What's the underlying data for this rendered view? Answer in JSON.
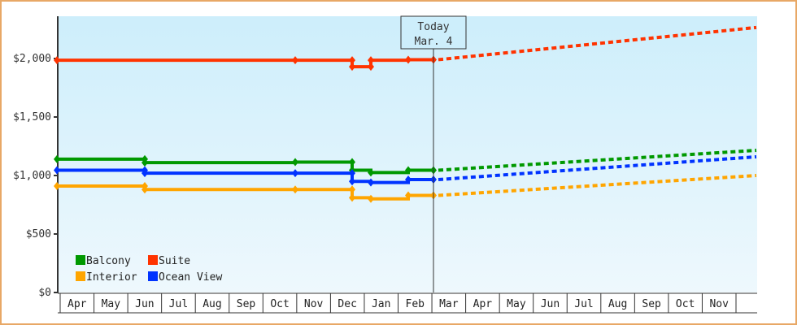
{
  "chart_data": {
    "type": "line",
    "title": "",
    "xlabel": "",
    "ylabel": "",
    "ylim": [
      0,
      2300
    ],
    "grid": false,
    "legend_position": "bottom-left inside plot",
    "y_ticks": [
      "$0",
      "$500",
      "$1,000",
      "$1,500",
      "$2,000"
    ],
    "y_tick_values": [
      0,
      500,
      1000,
      1500,
      2000
    ],
    "x_months": [
      "Apr",
      "May",
      "Jun",
      "Jul",
      "Aug",
      "Sep",
      "Oct",
      "Nov",
      "Dec",
      "Jan",
      "Feb",
      "Mar",
      "Apr",
      "May",
      "Jun",
      "Jul",
      "Aug",
      "Sep",
      "Oct",
      "Nov"
    ],
    "today_marker": {
      "line1": "Today",
      "line2": "Mar. 4"
    },
    "legend": [
      {
        "name": "Balcony",
        "color": "#009900"
      },
      {
        "name": "Suite",
        "color": "#ff3300"
      },
      {
        "name": "Interior",
        "color": "#ffa500"
      },
      {
        "name": "Ocean View",
        "color": "#0033ff"
      }
    ],
    "series": [
      {
        "name": "Suite",
        "color": "#ff3300",
        "historical": [
          {
            "date": "Apr",
            "value": 1985
          },
          {
            "date": "Nov",
            "value": 1985
          },
          {
            "date": "Dec",
            "value": 1985
          },
          {
            "date": "Dec",
            "value": 1930
          },
          {
            "date": "Jan",
            "value": 1930
          },
          {
            "date": "Jan",
            "value": 1985
          },
          {
            "date": "Feb",
            "value": 1990
          },
          {
            "date": "Mar. 4",
            "value": 1990
          }
        ],
        "projection": [
          {
            "date": "Mar. 4",
            "value": 1990
          },
          {
            "date": "end Nov",
            "value": 2265
          }
        ]
      },
      {
        "name": "Balcony",
        "color": "#009900",
        "historical": [
          {
            "date": "Apr",
            "value": 1140
          },
          {
            "date": "Jun",
            "value": 1140
          },
          {
            "date": "Jun",
            "value": 1110
          },
          {
            "date": "Nov",
            "value": 1115
          },
          {
            "date": "Dec",
            "value": 1115
          },
          {
            "date": "Dec",
            "value": 1045
          },
          {
            "date": "Jan",
            "value": 1025
          },
          {
            "date": "Feb",
            "value": 1045
          },
          {
            "date": "Mar. 4",
            "value": 1045
          }
        ],
        "projection": [
          {
            "date": "Mar. 4",
            "value": 1045
          },
          {
            "date": "end Nov",
            "value": 1215
          }
        ]
      },
      {
        "name": "Ocean View",
        "color": "#0033ff",
        "historical": [
          {
            "date": "Apr",
            "value": 1045
          },
          {
            "date": "Jun",
            "value": 1045
          },
          {
            "date": "Jun",
            "value": 1020
          },
          {
            "date": "Nov",
            "value": 1020
          },
          {
            "date": "Dec",
            "value": 1020
          },
          {
            "date": "Dec",
            "value": 950
          },
          {
            "date": "Jan",
            "value": 940
          },
          {
            "date": "Feb",
            "value": 965
          },
          {
            "date": "Mar. 4",
            "value": 965
          }
        ],
        "projection": [
          {
            "date": "Mar. 4",
            "value": 965
          },
          {
            "date": "end Nov",
            "value": 1160
          }
        ]
      },
      {
        "name": "Interior",
        "color": "#ffa500",
        "historical": [
          {
            "date": "Apr",
            "value": 910
          },
          {
            "date": "Jun",
            "value": 910
          },
          {
            "date": "Jun",
            "value": 880
          },
          {
            "date": "Nov",
            "value": 880
          },
          {
            "date": "Dec",
            "value": 880
          },
          {
            "date": "Dec",
            "value": 810
          },
          {
            "date": "Jan",
            "value": 800
          },
          {
            "date": "Feb",
            "value": 830
          },
          {
            "date": "Mar. 4",
            "value": 830
          }
        ],
        "projection": [
          {
            "date": "Mar. 4",
            "value": 830
          },
          {
            "date": "end Nov",
            "value": 1000
          }
        ]
      }
    ]
  }
}
